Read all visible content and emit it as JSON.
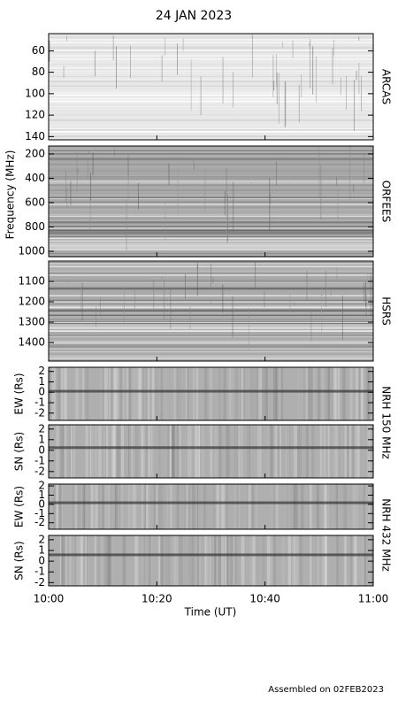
{
  "chart_data": {
    "type": "spectrogram",
    "title": "24 JAN 2023",
    "xlabel": "Time (UT)",
    "xlim": [
      "10:00",
      "11:00"
    ],
    "xticks": [
      "10:00",
      "10:20",
      "10:40",
      "11:00"
    ],
    "ylabel": "Frequency (MHz)",
    "instrument_labels": [
      "ARCAS",
      "ORFEES",
      "HSRS",
      "NRH 150 MHz",
      "NRH 432 MHz"
    ],
    "panels": [
      {
        "ylim": [
          44,
          143
        ],
        "inverted": true,
        "yticks": [
          60,
          80,
          100,
          120,
          140
        ]
      },
      {
        "ylim": [
          135,
          1044
        ],
        "inverted": true,
        "yticks": [
          200,
          400,
          600,
          800,
          1000
        ]
      },
      {
        "ylim": [
          1000,
          1491
        ],
        "inverted": true,
        "yticks": [
          1100,
          1200,
          1300,
          1400
        ]
      },
      {
        "ylabel": "EW (Rs)",
        "ylim": [
          -2.7,
          2.4
        ],
        "inverted": false,
        "yticks": [
          -2,
          -1,
          0,
          1,
          2
        ]
      },
      {
        "ylabel": "SN (Rs)",
        "ylim": [
          -2.6,
          2.4
        ],
        "inverted": false,
        "yticks": [
          -2,
          -1,
          0,
          1,
          2
        ]
      },
      {
        "ylabel": "EW (Rs)",
        "ylim": [
          -2.7,
          2.2
        ],
        "inverted": false,
        "yticks": [
          -2,
          -1,
          0,
          1,
          2
        ]
      },
      {
        "ylabel": "SN (Rs)",
        "ylim": [
          -2.3,
          2.4
        ],
        "inverted": false,
        "yticks": [
          -2,
          -1,
          0,
          1,
          2
        ]
      }
    ]
  },
  "footer": "Assembled on 02FEB2023"
}
